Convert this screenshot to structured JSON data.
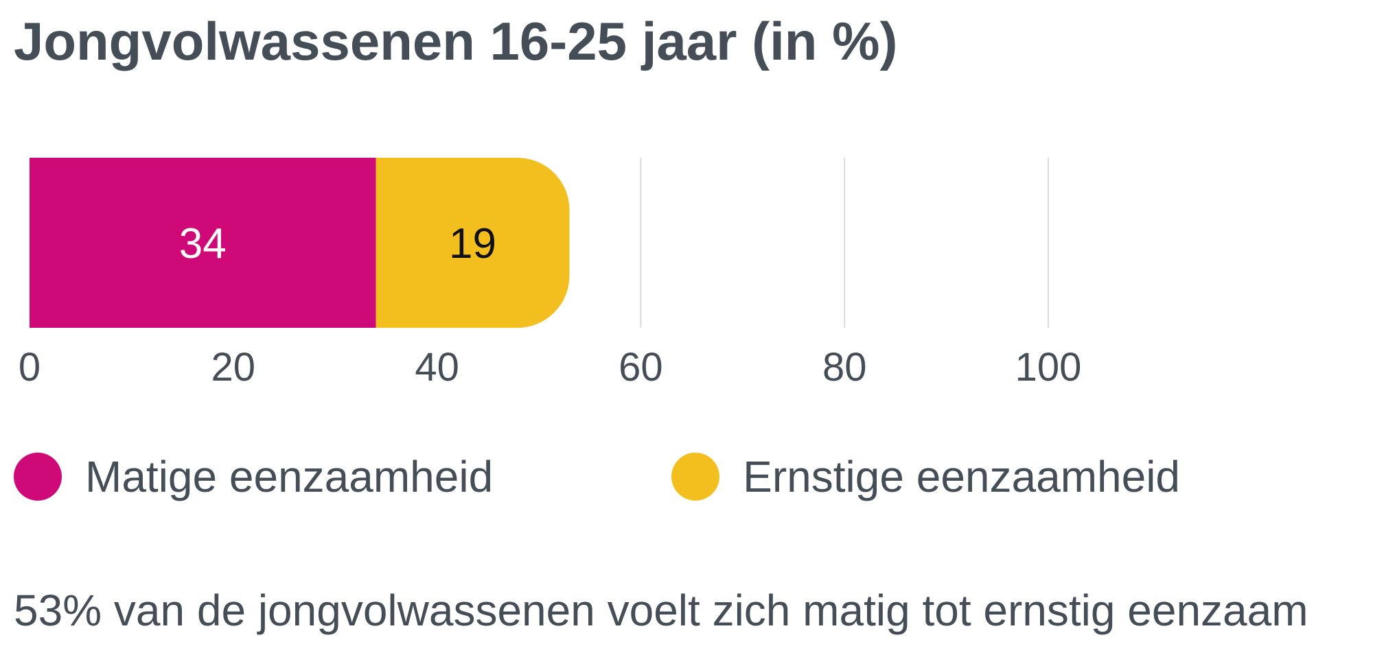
{
  "title": "Jongvolwassenen 16-25 jaar (in %)",
  "note": "53% van de jongvolwassenen voelt zich matig tot ernstig eenzaam",
  "chart_data": {
    "type": "bar",
    "orientation": "horizontal",
    "stacked": true,
    "title": "Jongvolwassenen 16-25 jaar (in %)",
    "xlabel": "",
    "ylabel": "",
    "xlim": [
      0,
      100
    ],
    "x_ticks": [
      0,
      20,
      40,
      60,
      80,
      100
    ],
    "grid": true,
    "legend_position": "bottom",
    "categories": [
      ""
    ],
    "series": [
      {
        "name": "Matige eenzaamheid",
        "values": [
          34
        ],
        "color": "#cf0a78",
        "label_color": "#ffffff"
      },
      {
        "name": "Ernstige eenzaamheid",
        "values": [
          19
        ],
        "color": "#f2bf1f",
        "label_color": "#111111"
      }
    ]
  }
}
